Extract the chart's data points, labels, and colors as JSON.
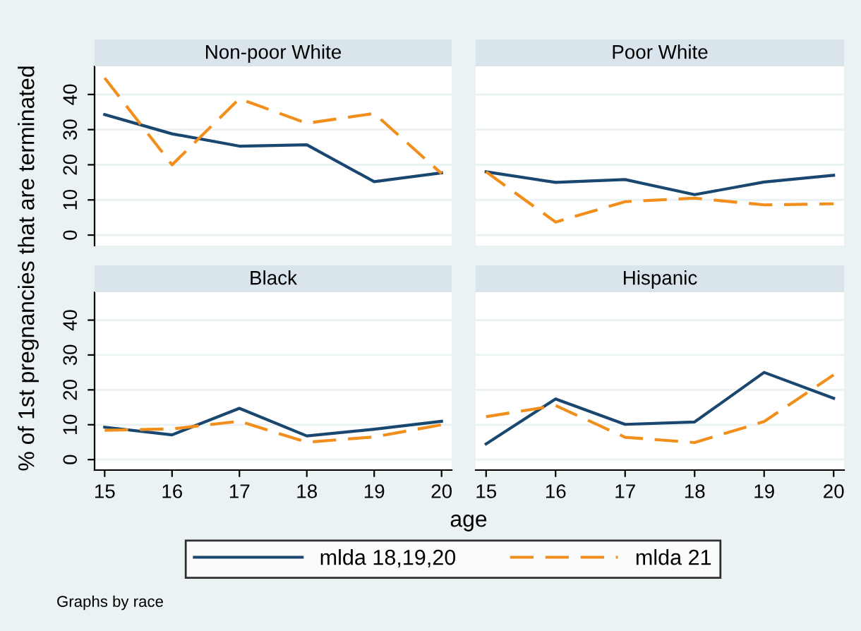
{
  "chart_data": [
    {
      "type": "line",
      "title": "Non-poor White",
      "ylabel": "% of 1st pregnancies that are terminated",
      "x": [
        15,
        16,
        17,
        18,
        19,
        20
      ],
      "xlim": [
        14.85,
        20.15
      ],
      "ylim": [
        -3,
        48
      ],
      "yticks": [
        0,
        10,
        20,
        30,
        40
      ],
      "xticks": [
        15,
        16,
        17,
        18,
        19,
        20
      ],
      "tick_labels": "y",
      "grid": "y",
      "legend": "bottom",
      "annotations": [
        "Graphs by race"
      ],
      "series": [
        {
          "name": "mlda 18,19,20",
          "color": "#1a476f",
          "line_style": "solid",
          "values": [
            34.3,
            28.8,
            25.3,
            25.7,
            15.2,
            17.7
          ]
        },
        {
          "name": "mlda 21",
          "color": "#f28e1c",
          "line_style": "dashed",
          "values": [
            44.7,
            20,
            38.8,
            31.8,
            34.6,
            17.5
          ]
        }
      ]
    },
    {
      "type": "line",
      "title": "Poor White",
      "x": [
        15,
        16,
        17,
        18,
        19,
        20
      ],
      "xlim": [
        14.85,
        20.15
      ],
      "ylim": [
        -3,
        48
      ],
      "yticks": [
        0,
        10,
        20,
        30,
        40
      ],
      "xticks": [
        15,
        16,
        17,
        18,
        19,
        20
      ],
      "tick_labels": false,
      "grid": "y",
      "series": [
        {
          "color": "#1a476f",
          "line_style": "solid",
          "values": [
            18,
            15,
            15.8,
            11.5,
            15.1,
            17
          ]
        },
        {
          "color": "#f28e1c",
          "line_style": "dashed",
          "values": [
            18,
            3.7,
            9.5,
            10.5,
            8.6,
            8.9
          ]
        }
      ]
    },
    {
      "type": "line",
      "title": "Black",
      "xlabel": "age",
      "x": [
        15,
        16,
        17,
        18,
        19,
        20
      ],
      "xlim": [
        14.85,
        20.15
      ],
      "ylim": [
        -3,
        48
      ],
      "yticks": [
        0,
        10,
        20,
        30,
        40
      ],
      "xticks": [
        15,
        16,
        17,
        18,
        19,
        20
      ],
      "grid": "y",
      "series": [
        {
          "color": "#1a476f",
          "line_style": "solid",
          "values": [
            9.3,
            7.1,
            14.7,
            6.8,
            8.7,
            11
          ]
        },
        {
          "color": "#f28e1c",
          "line_style": "dashed",
          "values": [
            8.4,
            8.8,
            11,
            5,
            6.5,
            10
          ]
        }
      ]
    },
    {
      "type": "line",
      "title": "Hispanic",
      "x": [
        15,
        16,
        17,
        18,
        19,
        20
      ],
      "xlim": [
        14.85,
        20.15
      ],
      "ylim": [
        -3,
        48
      ],
      "yticks": [
        0,
        10,
        20,
        30,
        40
      ],
      "xticks": [
        15,
        16,
        17,
        18,
        19,
        20
      ],
      "tick_labels": "x",
      "grid": "y",
      "series": [
        {
          "color": "#1a476f",
          "line_style": "solid",
          "values": [
            4.5,
            17.4,
            10.1,
            10.8,
            25,
            17.6
          ]
        },
        {
          "color": "#f28e1c",
          "line_style": "dashed",
          "values": [
            12.3,
            15.5,
            6.4,
            4.9,
            10.9,
            24.3
          ]
        }
      ]
    }
  ]
}
